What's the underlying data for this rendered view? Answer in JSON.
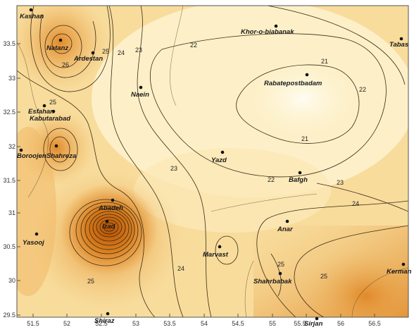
{
  "map": {
    "colors": {
      "low": "#fff6d8",
      "mid": "#f6d48c",
      "high": "#e8952e",
      "peak": "#c25e0b",
      "frame": "#555555"
    },
    "y_ticks": [
      "33.5",
      "33",
      "32.5",
      "32",
      "31.5",
      "31",
      "30.5",
      "30",
      "29.5"
    ],
    "x_ticks": [
      "51.5",
      "52",
      "52.5",
      "53",
      "53.5",
      "54",
      "54.5",
      "55",
      "55.5",
      "56",
      "56.5"
    ],
    "places": [
      {
        "name": "Kashan",
        "label": "Kashan"
      },
      {
        "name": "Natanz",
        "label": "Natanz"
      },
      {
        "name": "Ardestan",
        "label": "Ardestan"
      },
      {
        "name": "Khor-o-biabanak",
        "label": "Khor-o-biabanak"
      },
      {
        "name": "Tabas",
        "label": "Tabas"
      },
      {
        "name": "Rabatepostbadam",
        "label": "Rabatepostbadam"
      },
      {
        "name": "Naein",
        "label": "Naein"
      },
      {
        "name": "Esfahan",
        "label": "Esfahan"
      },
      {
        "name": "Kabutarabad",
        "label": "Kabutarabad"
      },
      {
        "name": "Boroojen",
        "label": "Boroojen"
      },
      {
        "name": "Shahreza",
        "label": "Shahreza"
      },
      {
        "name": "Yazd",
        "label": "Yazd"
      },
      {
        "name": "Bafgh",
        "label": "Bafgh"
      },
      {
        "name": "Abadeh",
        "label": "Abadeh"
      },
      {
        "name": "Izad",
        "label": "Izad"
      },
      {
        "name": "Anar",
        "label": "Anar"
      },
      {
        "name": "Yasooj",
        "label": "Yasooj"
      },
      {
        "name": "Marvast",
        "label": "Marvast"
      },
      {
        "name": "Shahrbabak",
        "label": "Shahrbabak"
      },
      {
        "name": "Kerman",
        "label": "Kerman"
      },
      {
        "name": "Shiraz",
        "label": "Shiraz"
      },
      {
        "name": "Sirjan",
        "label": "Sirjan"
      }
    ],
    "contour_labels": [
      {
        "name": "c22-top",
        "text": "22"
      },
      {
        "name": "c23-top",
        "text": "23"
      },
      {
        "name": "c24-top",
        "text": "24"
      },
      {
        "name": "c25-north",
        "text": "25"
      },
      {
        "name": "c26-north",
        "text": "26"
      },
      {
        "name": "c21-ne",
        "text": "21"
      },
      {
        "name": "c21-ne2",
        "text": "21"
      },
      {
        "name": "c22-east",
        "text": "22"
      },
      {
        "name": "c23-center",
        "text": "23"
      },
      {
        "name": "c22-bafgh",
        "text": "22"
      },
      {
        "name": "c23-east",
        "text": "23"
      },
      {
        "name": "c24-east",
        "text": "24"
      },
      {
        "name": "c25-west",
        "text": "25"
      },
      {
        "name": "c24-south",
        "text": "24"
      },
      {
        "name": "c25-southwest",
        "text": "25"
      },
      {
        "name": "c25-south",
        "text": "25"
      },
      {
        "name": "c25-southeast",
        "text": "25"
      }
    ]
  }
}
